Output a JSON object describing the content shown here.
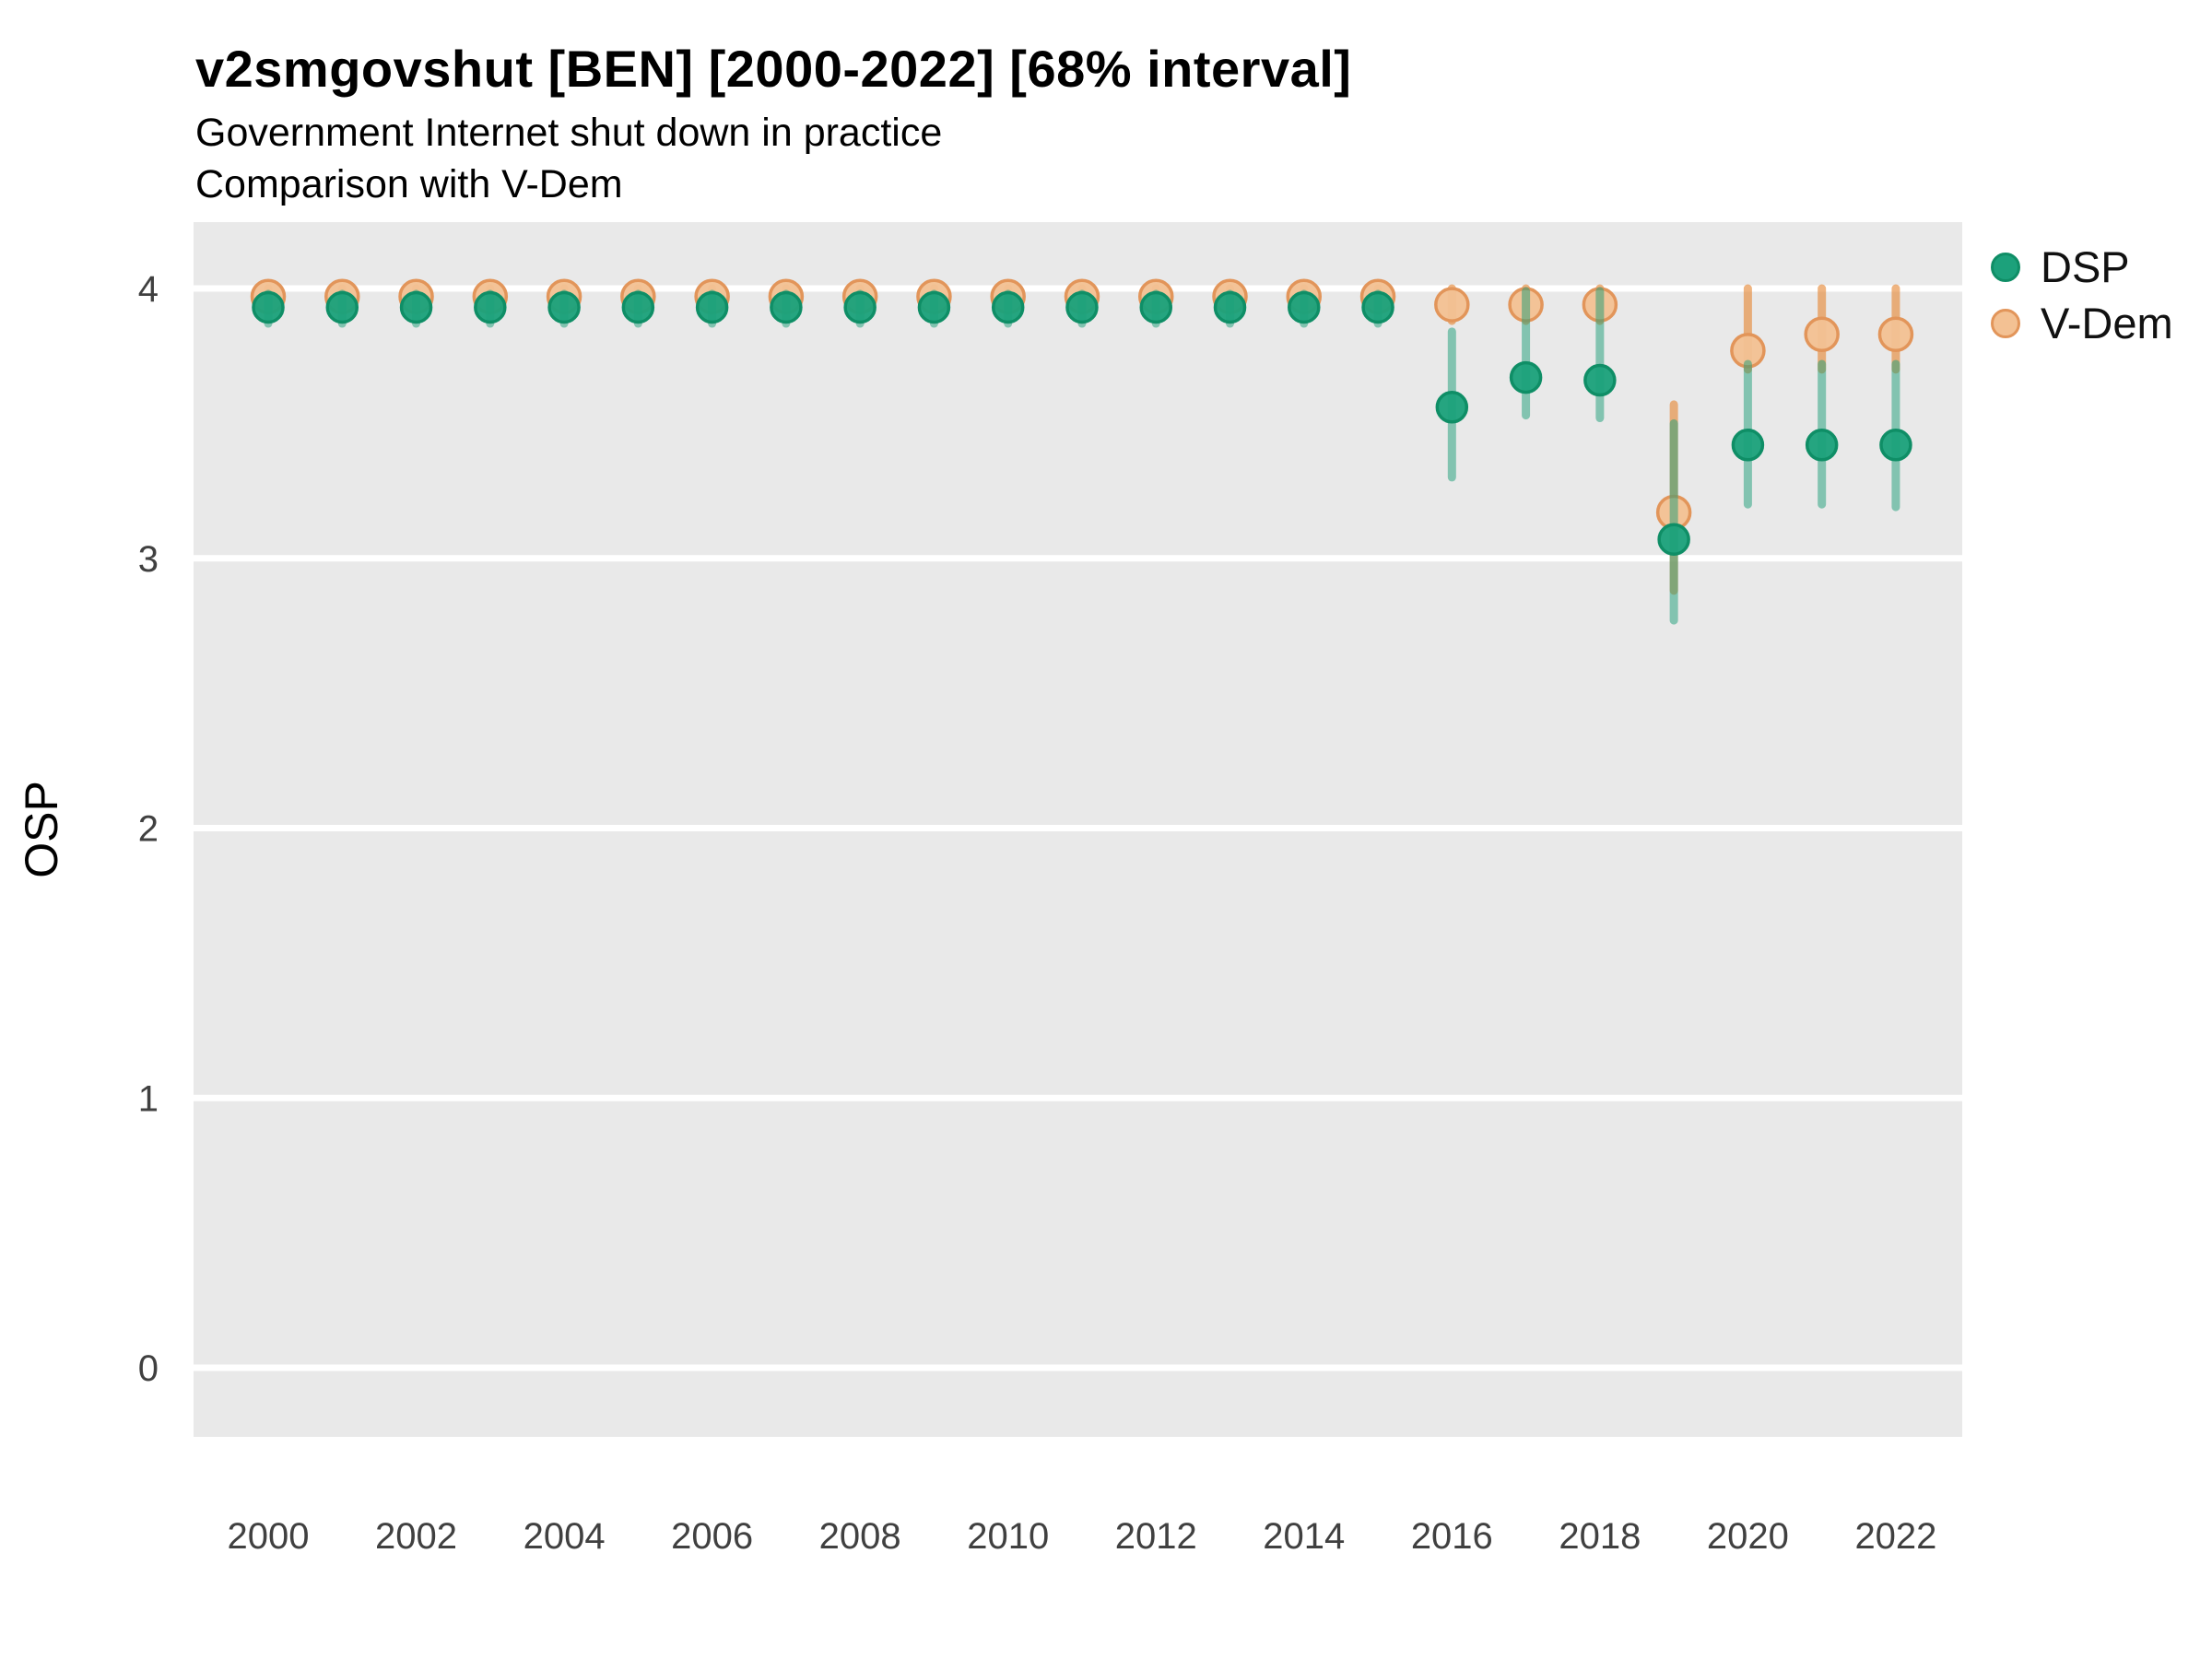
{
  "header": {
    "title": "v2smgovshut [BEN] [2000-2022] [68% interval]",
    "subtitle1": "Government Internet shut down in practice",
    "subtitle2": "Comparison with V-Dem"
  },
  "chart_data": {
    "type": "scatter",
    "title": "v2smgovshut [BEN] [2000-2022] [68% interval]",
    "subtitle": "Government Internet shut down in practice — Comparison with V-Dem",
    "xlabel": "",
    "ylabel": "OSP",
    "interval": "68%",
    "x": [
      2000,
      2001,
      2002,
      2003,
      2004,
      2005,
      2006,
      2007,
      2008,
      2009,
      2010,
      2011,
      2012,
      2013,
      2014,
      2015,
      2016,
      2017,
      2018,
      2019,
      2020,
      2021,
      2022
    ],
    "xticks": [
      2000,
      2002,
      2004,
      2006,
      2008,
      2010,
      2012,
      2014,
      2016,
      2018,
      2020,
      2022
    ],
    "yticks": [
      0,
      1,
      2,
      3,
      4
    ],
    "xlim": [
      1999.0,
      2022.9
    ],
    "ylim": [
      -0.26,
      4.25
    ],
    "grid": "horizontal-major-only",
    "legend_position": "right",
    "panel_bg": "#E9E9E9",
    "grid_color": "#FFFFFF",
    "series": [
      {
        "name": "DSP",
        "color_fill": "#1CA17B",
        "color_stroke": "#0F8E66",
        "color_interval": "rgba(27,158,119,0.5)",
        "est": [
          3.93,
          3.93,
          3.93,
          3.93,
          3.93,
          3.93,
          3.93,
          3.93,
          3.93,
          3.93,
          3.93,
          3.93,
          3.93,
          3.93,
          3.93,
          3.93,
          3.56,
          3.67,
          3.66,
          3.07,
          3.42,
          3.42,
          3.42
        ],
        "lo": [
          3.87,
          3.87,
          3.87,
          3.87,
          3.87,
          3.87,
          3.87,
          3.87,
          3.87,
          3.87,
          3.87,
          3.87,
          3.87,
          3.87,
          3.87,
          3.87,
          3.3,
          3.53,
          3.52,
          2.77,
          3.2,
          3.2,
          3.19
        ],
        "hi": [
          3.98,
          3.98,
          3.98,
          3.98,
          3.98,
          3.98,
          3.98,
          3.98,
          3.98,
          3.98,
          3.98,
          3.98,
          3.98,
          3.98,
          3.98,
          3.98,
          3.84,
          3.99,
          3.99,
          3.5,
          3.72,
          3.72,
          3.72
        ]
      },
      {
        "name": "V-Dem",
        "color_fill": "#F3C193",
        "color_stroke": "#E2955A",
        "color_interval": "rgba(230,140,60,0.65)",
        "est": [
          3.97,
          3.97,
          3.97,
          3.97,
          3.97,
          3.97,
          3.97,
          3.97,
          3.97,
          3.97,
          3.97,
          3.97,
          3.97,
          3.97,
          3.97,
          3.97,
          3.94,
          3.94,
          3.94,
          3.17,
          3.77,
          3.83,
          3.83
        ],
        "lo": [
          3.92,
          3.92,
          3.92,
          3.92,
          3.92,
          3.92,
          3.92,
          3.92,
          3.92,
          3.92,
          3.92,
          3.92,
          3.92,
          3.92,
          3.92,
          3.92,
          3.88,
          3.88,
          3.88,
          2.88,
          3.7,
          3.7,
          3.7
        ],
        "hi": [
          4.0,
          4.0,
          4.0,
          4.0,
          4.0,
          4.0,
          4.0,
          4.0,
          4.0,
          4.0,
          4.0,
          4.0,
          4.0,
          4.0,
          4.0,
          4.0,
          4.0,
          4.0,
          4.0,
          3.57,
          4.0,
          4.0,
          4.0
        ]
      }
    ]
  }
}
